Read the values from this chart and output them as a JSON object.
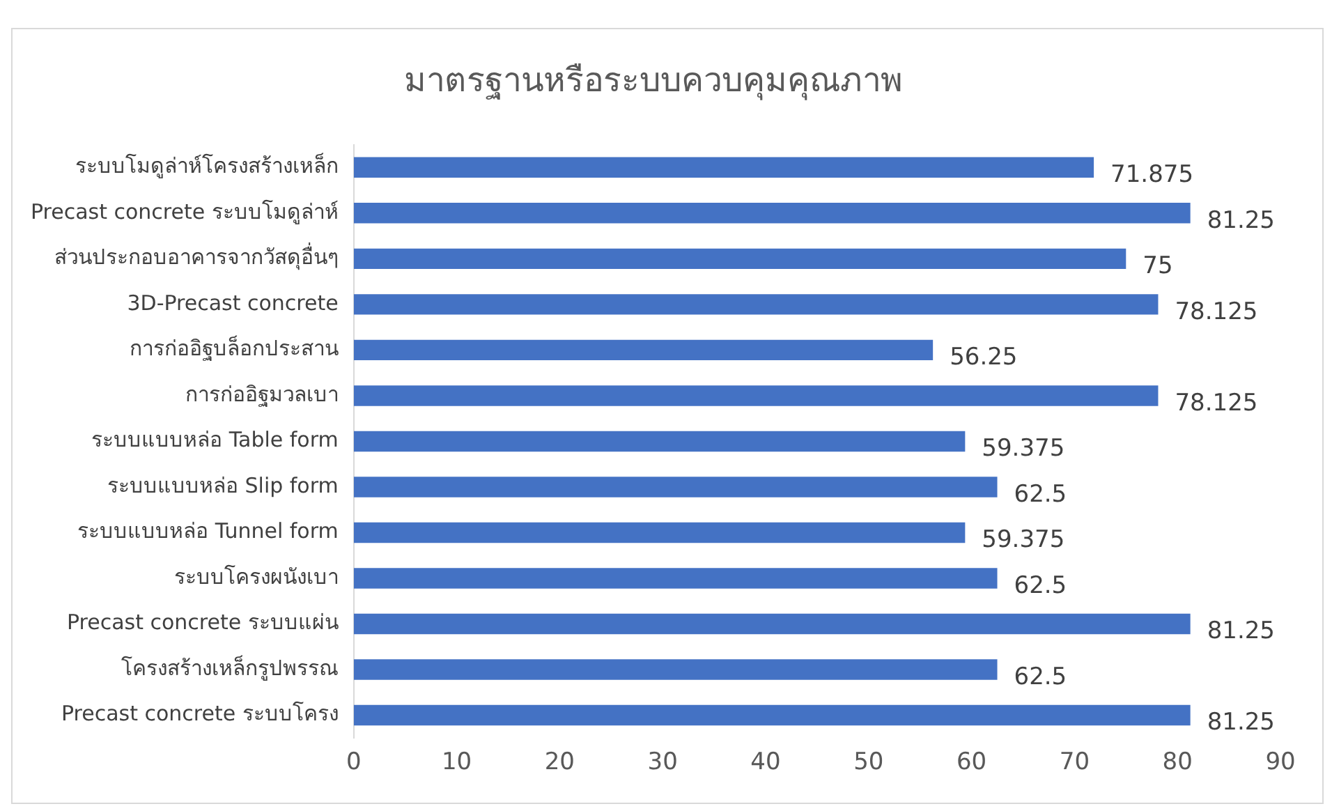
{
  "chart_data": {
    "type": "bar",
    "orientation": "horizontal",
    "title": "มาตรฐานหรือระบบควบคุมคุณภาพ",
    "categories": [
      "ระบบโมดูล่าห์โครงสร้างเหล็ก",
      "Precast concrete ระบบโมดูล่าห์",
      "ส่วนประกอบอาคารจากวัสดุอื่นๆ",
      "3D-Precast concrete",
      "การก่ออิฐบล็อกประสาน",
      "การก่ออิฐมวลเบา",
      "ระบบแบบหล่อ Table form",
      "ระบบแบบหล่อ Slip form",
      "ระบบแบบหล่อ Tunnel form",
      "ระบบโครงผนังเบา",
      "Precast concrete ระบบแผ่น",
      "โครงสร้างเหล็กรูปพรรณ",
      "Precast concrete ระบบโครง"
    ],
    "values": [
      71.875,
      81.25,
      75,
      78.125,
      56.25,
      78.125,
      59.375,
      62.5,
      59.375,
      62.5,
      81.25,
      62.5,
      81.25
    ],
    "color": "#4472c4",
    "xlim": [
      0,
      90
    ],
    "xticks": [
      0,
      10,
      20,
      30,
      40,
      50,
      60,
      70,
      80,
      90
    ],
    "grid": false,
    "legend": false,
    "data_labels": true
  }
}
